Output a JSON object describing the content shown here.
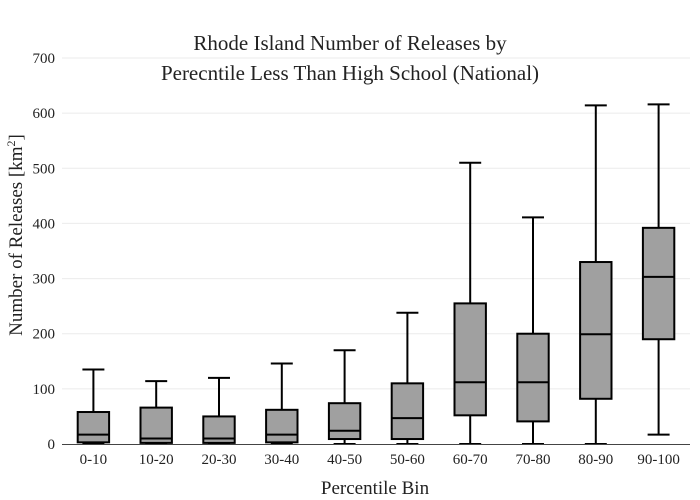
{
  "chart_data": {
    "type": "box",
    "title_lines": [
      "Rhode Island Number of Releases by",
      "Perecntile Less Than High School (National)"
    ],
    "xlabel": "Percentile Bin",
    "ylabel_main": "Number of Releases  [km",
    "ylabel_sup": "2",
    "ylabel_end": "]",
    "ylim": [
      0,
      700
    ],
    "yticks": [
      0,
      100,
      200,
      300,
      400,
      500,
      600,
      700
    ],
    "grid": true,
    "colors": {
      "box_fill": "#a0a0a0",
      "stroke": "#000000",
      "grid": "#ebebeb",
      "axis": "#444444"
    },
    "categories": [
      "0-10",
      "10-20",
      "20-30",
      "30-40",
      "40-50",
      "50-60",
      "60-70",
      "70-80",
      "80-90",
      "90-100"
    ],
    "boxes": [
      {
        "min": 0,
        "q1": 3,
        "median": 17,
        "q3": 58,
        "max": 135
      },
      {
        "min": 0,
        "q1": 2,
        "median": 10,
        "q3": 66,
        "max": 114
      },
      {
        "min": 0,
        "q1": 2,
        "median": 10,
        "q3": 50,
        "max": 120
      },
      {
        "min": 0,
        "q1": 3,
        "median": 17,
        "q3": 62,
        "max": 146
      },
      {
        "min": 0,
        "q1": 9,
        "median": 24,
        "q3": 74,
        "max": 170
      },
      {
        "min": 0,
        "q1": 9,
        "median": 47,
        "q3": 110,
        "max": 238
      },
      {
        "min": 0,
        "q1": 52,
        "median": 112,
        "q3": 255,
        "max": 510
      },
      {
        "min": 0,
        "q1": 41,
        "median": 112,
        "q3": 200,
        "max": 411
      },
      {
        "min": 0,
        "q1": 82,
        "median": 199,
        "q3": 330,
        "max": 614
      },
      {
        "min": 17,
        "q1": 190,
        "median": 303,
        "q3": 392,
        "max": 616
      }
    ]
  }
}
